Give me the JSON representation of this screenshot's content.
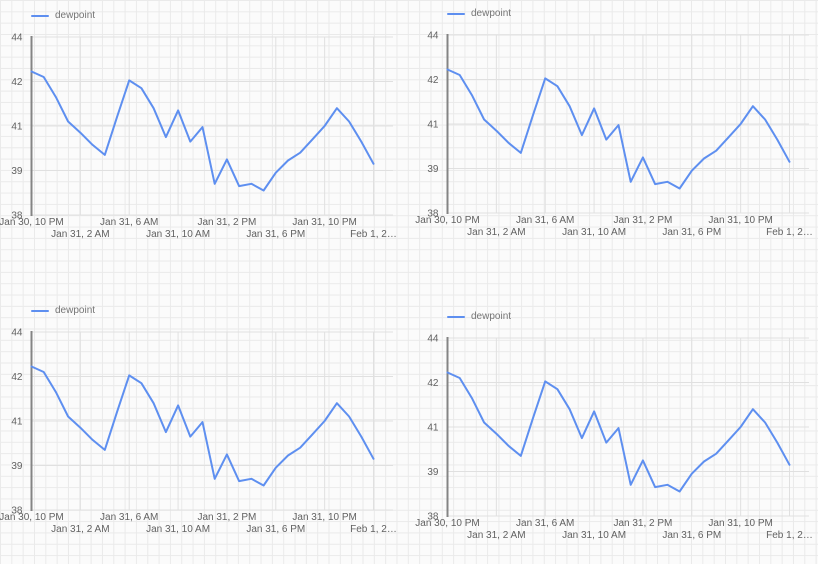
{
  "page": {
    "background_color": "#fbfbfb",
    "paper_grid_color": "#eaeaea",
    "paper_grid_size": 11.33
  },
  "chart_style": {
    "line_color": "#5e8ff0",
    "axis_color": "#848484",
    "gridline_color": "#e0e0e0",
    "tick_label_color": "#616161",
    "legend_label_color": "#757575"
  },
  "chart_data": {
    "type": "line",
    "title": "",
    "repeated_panels": 4,
    "legend_position": "top-left",
    "grid": true,
    "series": [
      {
        "name": "dewpoint",
        "values": [
          42.45,
          42.2,
          41.65,
          41.1,
          40.7,
          40.15,
          39.7,
          41.2,
          42.05,
          41.85,
          41.4,
          40.5,
          41.35,
          40.3,
          40.95,
          38.7,
          39.5,
          38.65,
          38.7,
          38.55,
          38.95,
          39.45,
          39.8,
          40.4,
          41.0,
          41.4,
          41.1,
          40.3,
          39.3
        ]
      }
    ],
    "x_tick_labels": [
      "Jan 30, 10 PM",
      "Jan 31, 2 AM",
      "Jan 31, 6 AM",
      "Jan 31, 10 AM",
      "Jan 31, 2 PM",
      "Jan 31, 6 PM",
      "Jan 31, 10 PM",
      "Feb 1, 2…"
    ],
    "y_tick_labels": [
      "44",
      "42",
      "41",
      "39",
      "38"
    ],
    "y_tick_values": [
      44,
      42,
      41,
      39,
      38
    ],
    "y_axis_note": "five ticks rendered at even vertical spacing",
    "x_range": [
      "Jan 30, 10 PM",
      "Feb 1, 2 AM"
    ]
  }
}
